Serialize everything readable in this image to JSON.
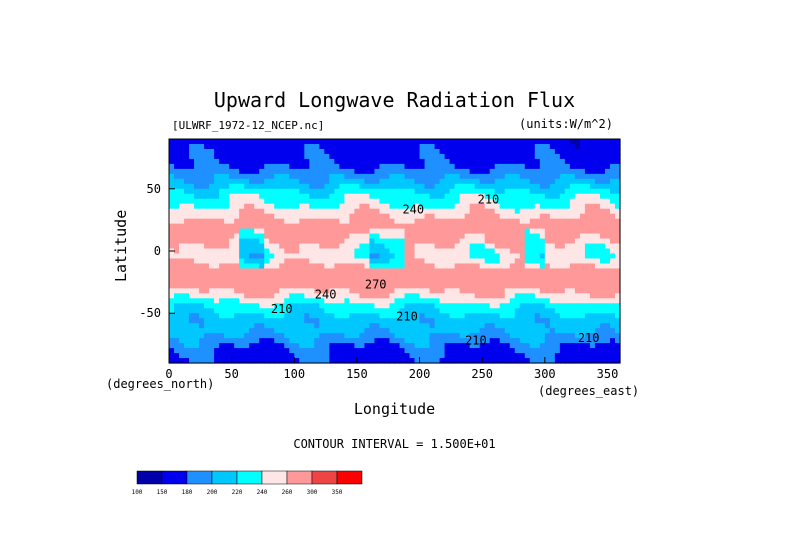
{
  "chart_data": {
    "type": "heatmap",
    "title": "Upward Longwave Radiation Flux",
    "file_label": "[ULWRF_1972-12_NCEP.nc]",
    "units_label": "(units:W/m^2)",
    "xlabel": "Longitude",
    "ylabel": "Latitude",
    "x_unit_label": "(degrees_east)",
    "y_unit_label": "(degrees_north)",
    "xlim": [
      0,
      360
    ],
    "ylim": [
      -90,
      90
    ],
    "x_ticks": [
      "0",
      "50",
      "100",
      "150",
      "200",
      "250",
      "300",
      "350"
    ],
    "y_ticks": [
      "50",
      "0",
      "-50"
    ],
    "contour_interval_text": "CONTOUR INTERVAL = 1.500E+01",
    "contour_labels": [
      {
        "text": "240",
        "lon": 195,
        "lat": 30
      },
      {
        "text": "210",
        "lon": 255,
        "lat": 38
      },
      {
        "text": "210",
        "lon": 90,
        "lat": -50
      },
      {
        "text": "240",
        "lon": 125,
        "lat": -38
      },
      {
        "text": "270",
        "lon": 165,
        "lat": -30
      },
      {
        "text": "210",
        "lon": 190,
        "lat": -56
      },
      {
        "text": "210",
        "lon": 245,
        "lat": -75
      },
      {
        "text": "210",
        "lon": 335,
        "lat": -73
      }
    ],
    "colorbar": {
      "levels": [
        "100",
        "150",
        "180",
        "200",
        "220",
        "240",
        "260",
        "300",
        "350"
      ],
      "colors": [
        "#0000aa",
        "#0000ee",
        "#1e90ff",
        "#00c8ff",
        "#00ffff",
        "#ffe6e6",
        "#ff9999",
        "#ee4444",
        "#ff0000"
      ]
    },
    "band_profile": [
      {
        "lat": 90,
        "value": 160
      },
      {
        "lat": 70,
        "value": 175
      },
      {
        "lat": 55,
        "value": 205
      },
      {
        "lat": 45,
        "value": 230
      },
      {
        "lat": 35,
        "value": 245
      },
      {
        "lat": 25,
        "value": 265
      },
      {
        "lat": 15,
        "value": 275
      },
      {
        "lat": 5,
        "value": 255
      },
      {
        "lat": -5,
        "value": 245
      },
      {
        "lat": -15,
        "value": 270
      },
      {
        "lat": -25,
        "value": 280
      },
      {
        "lat": -35,
        "value": 255
      },
      {
        "lat": -45,
        "value": 225
      },
      {
        "lat": -55,
        "value": 210
      },
      {
        "lat": -65,
        "value": 205
      },
      {
        "lat": -75,
        "value": 185
      },
      {
        "lat": -90,
        "value": 170
      }
    ]
  }
}
